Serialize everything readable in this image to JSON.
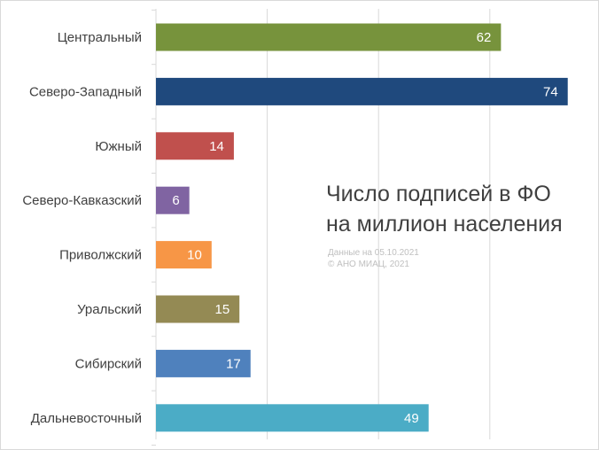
{
  "chart_data": {
    "type": "bar",
    "orientation": "horizontal",
    "title_lines": [
      "Число подписей в ФО",
      "на миллион населения"
    ],
    "notes": [
      "Данные на 05.10.2021",
      "© АНО МИАЦ, 2021"
    ],
    "categories": [
      "Центральный",
      "Северо-Западный",
      "Южный",
      "Северо-Кавказский",
      "Приволжский",
      "Уральский",
      "Сибирский",
      "Дальневосточный"
    ],
    "values": [
      62,
      74,
      14,
      6,
      10,
      15,
      17,
      49
    ],
    "colors": [
      "#77933c",
      "#1f497d",
      "#c0504d",
      "#8064a2",
      "#f79646",
      "#948a54",
      "#4f81bd",
      "#4bacc6"
    ],
    "xlim": [
      0,
      80
    ],
    "x_gridlines": [
      0,
      20,
      40,
      60,
      80
    ],
    "grid": true,
    "gridline_color": "#d9d9d9",
    "value_label_color": "#ffffff"
  }
}
